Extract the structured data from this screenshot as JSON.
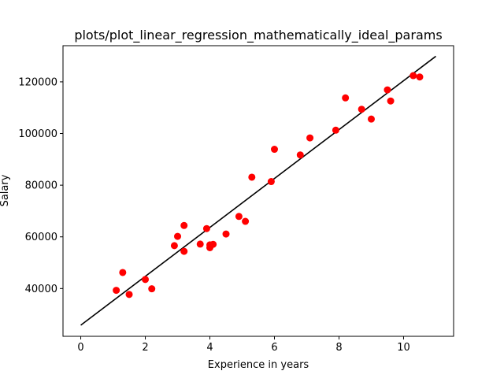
{
  "chart_data": {
    "type": "scatter",
    "title": "plots/plot_linear_regression_mathematically_ideal_params",
    "xlabel": "Experience in years",
    "ylabel": "Salary",
    "xlim": [
      -0.55,
      11.55
    ],
    "ylim": [
      21500,
      134000
    ],
    "xticks": [
      0,
      2,
      4,
      6,
      8,
      10
    ],
    "xtick_labels": [
      "0",
      "2",
      "4",
      "6",
      "8",
      "10"
    ],
    "yticks": [
      40000,
      60000,
      80000,
      100000,
      120000
    ],
    "ytick_labels": [
      "40000",
      "60000",
      "80000",
      "100000",
      "120000"
    ],
    "grid": false,
    "series": [
      {
        "kind": "scatter",
        "color": "#ff0000",
        "points": [
          {
            "x": 1.1,
            "y": 39300
          },
          {
            "x": 1.3,
            "y": 46200
          },
          {
            "x": 1.5,
            "y": 37700
          },
          {
            "x": 2.0,
            "y": 43500
          },
          {
            "x": 2.2,
            "y": 39900
          },
          {
            "x": 2.9,
            "y": 56600
          },
          {
            "x": 3.0,
            "y": 60200
          },
          {
            "x": 3.2,
            "y": 54400
          },
          {
            "x": 3.2,
            "y": 64400
          },
          {
            "x": 3.7,
            "y": 57200
          },
          {
            "x": 3.9,
            "y": 63200
          },
          {
            "x": 4.0,
            "y": 55800
          },
          {
            "x": 4.0,
            "y": 56900
          },
          {
            "x": 4.1,
            "y": 57100
          },
          {
            "x": 4.5,
            "y": 61100
          },
          {
            "x": 4.9,
            "y": 67900
          },
          {
            "x": 5.1,
            "y": 66000
          },
          {
            "x": 5.3,
            "y": 83100
          },
          {
            "x": 5.9,
            "y": 81400
          },
          {
            "x": 6.0,
            "y": 93900
          },
          {
            "x": 6.8,
            "y": 91700
          },
          {
            "x": 7.1,
            "y": 98300
          },
          {
            "x": 7.9,
            "y": 101300
          },
          {
            "x": 8.2,
            "y": 113800
          },
          {
            "x": 8.7,
            "y": 109400
          },
          {
            "x": 9.0,
            "y": 105600
          },
          {
            "x": 9.5,
            "y": 116900
          },
          {
            "x": 9.6,
            "y": 112600
          },
          {
            "x": 10.3,
            "y": 122400
          },
          {
            "x": 10.5,
            "y": 121900
          }
        ]
      },
      {
        "kind": "line",
        "color": "#000000",
        "points": [
          {
            "x": 0,
            "y": 25800
          },
          {
            "x": 11,
            "y": 129900
          }
        ]
      }
    ]
  }
}
